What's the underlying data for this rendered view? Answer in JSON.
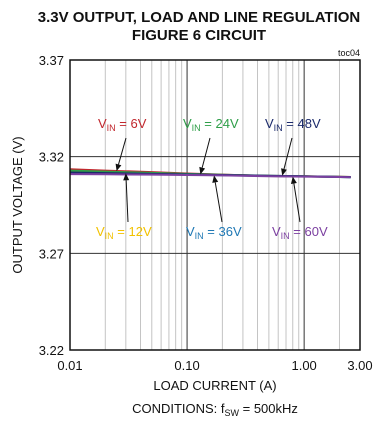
{
  "chart_data": {
    "type": "line",
    "title": "3.3V OUTPUT, LOAD AND LINE REGULATION",
    "subtitle": "FIGURE 6 CIRCUIT",
    "tag": "toc04",
    "xlabel": "LOAD CURRENT (A)",
    "ylabel": "OUTPUT VOLTAGE (V)",
    "conditions_prefix": "CONDITIONS: f",
    "conditions_sub": "SW",
    "conditions_suffix": " = 500kHz",
    "x_scale": "log",
    "xlim": [
      0.01,
      3.0
    ],
    "ylim": [
      3.22,
      3.37
    ],
    "x_ticks": [
      {
        "value": 0.01,
        "label": "0.01"
      },
      {
        "value": 0.1,
        "label": "0.10"
      },
      {
        "value": 1.0,
        "label": "1.00"
      },
      {
        "value": 3.0,
        "label": "3.00"
      }
    ],
    "y_ticks": [
      {
        "value": 3.22,
        "label": "3.22"
      },
      {
        "value": 3.27,
        "label": "3.27"
      },
      {
        "value": 3.32,
        "label": "3.32"
      },
      {
        "value": 3.37,
        "label": "3.37"
      }
    ],
    "grid": true,
    "series": [
      {
        "name": "VIN = 6V",
        "color": "#c1272d",
        "x": [
          0.01,
          0.02,
          0.05,
          0.1,
          0.2,
          0.5,
          1.0,
          1.5,
          2.0,
          2.5
        ],
        "y": [
          3.3135,
          3.3128,
          3.312,
          3.3113,
          3.3107,
          3.31,
          3.3098,
          3.3096,
          3.3095,
          3.3095
        ]
      },
      {
        "name": "VIN = 12V",
        "color": "#f2c200",
        "x": [
          0.01,
          0.02,
          0.05,
          0.1,
          0.2,
          0.5,
          1.0,
          1.5,
          2.0,
          2.5
        ],
        "y": [
          3.3122,
          3.3118,
          3.3113,
          3.3109,
          3.3105,
          3.31,
          3.3099,
          3.3097,
          3.3096,
          3.3095
        ]
      },
      {
        "name": "VIN = 24V",
        "color": "#2e9e48",
        "x": [
          0.01,
          0.02,
          0.05,
          0.1,
          0.2,
          0.5,
          1.0,
          1.5,
          2.0,
          2.5
        ],
        "y": [
          3.3128,
          3.3123,
          3.3116,
          3.3111,
          3.3106,
          3.3101,
          3.3098,
          3.3097,
          3.3095,
          3.3094
        ]
      },
      {
        "name": "VIN = 36V",
        "color": "#1f78b4",
        "x": [
          0.01,
          0.02,
          0.05,
          0.1,
          0.2,
          0.5,
          1.0,
          1.5,
          2.0,
          2.5
        ],
        "y": [
          3.3115,
          3.3113,
          3.311,
          3.3107,
          3.3104,
          3.31,
          3.3098,
          3.3096,
          3.3095,
          3.3094
        ]
      },
      {
        "name": "VIN = 48V",
        "color": "#1b2a6b",
        "x": [
          0.01,
          0.02,
          0.05,
          0.1,
          0.2,
          0.5,
          1.0,
          1.5,
          2.0,
          2.5
        ],
        "y": [
          3.3118,
          3.3115,
          3.3111,
          3.3108,
          3.3105,
          3.3101,
          3.3099,
          3.3097,
          3.3096,
          3.3095
        ]
      },
      {
        "name": "VIN = 60V",
        "color": "#7b3fa0",
        "x": [
          0.01,
          0.02,
          0.05,
          0.1,
          0.2,
          0.5,
          1.0,
          1.5,
          2.0,
          2.5
        ],
        "y": [
          3.311,
          3.3109,
          3.3107,
          3.3105,
          3.3103,
          3.3099,
          3.3097,
          3.3096,
          3.3095,
          3.3094
        ]
      }
    ],
    "annotations": [
      {
        "pre": "V",
        "sub": "IN",
        "post": " = 6V",
        "color": "#c1272d",
        "arrow_to_x": 0.025,
        "arrow_to_y": 3.3125
      },
      {
        "pre": "V",
        "sub": "IN",
        "post": " = 24V",
        "color": "#2e9e48",
        "arrow_to_x": 0.13,
        "arrow_to_y": 3.3108
      },
      {
        "pre": "V",
        "sub": "IN",
        "post": " = 48V",
        "color": "#1b2a6b",
        "arrow_to_x": 0.65,
        "arrow_to_y": 3.3101
      },
      {
        "pre": "V",
        "sub": "IN",
        "post": " = 12V",
        "color": "#f2c200",
        "arrow_to_x": 0.03,
        "arrow_to_y": 3.3114
      },
      {
        "pre": "V",
        "sub": "IN",
        "post": " = 36V",
        "color": "#1f78b4",
        "arrow_to_x": 0.17,
        "arrow_to_y": 3.3103
      },
      {
        "pre": "V",
        "sub": "IN",
        "post": " = 60V",
        "color": "#7b3fa0",
        "arrow_to_x": 0.8,
        "arrow_to_y": 3.3097
      }
    ]
  }
}
